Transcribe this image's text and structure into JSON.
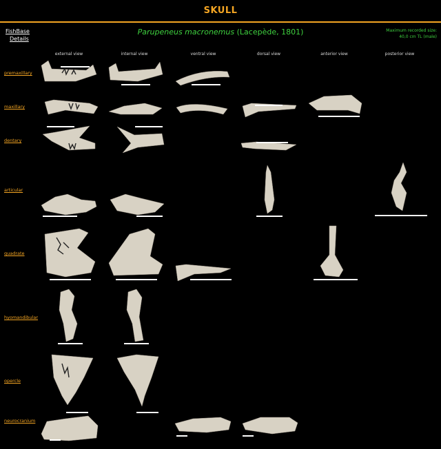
{
  "title": "SKULL",
  "fishbase": {
    "line1": "FishBase",
    "line2": "Details"
  },
  "species": {
    "name": "Parupeneus macronemus",
    "author": " (Lacepède, 1801)"
  },
  "max_size": {
    "line1": "Maximum recorded size:",
    "line2": "40,0 cm TL (male)"
  },
  "columns": [
    "external view",
    "internal view",
    "ventral view",
    "dorsal view",
    "anterior view",
    "posterior view"
  ],
  "rows": [
    "premaxillary",
    "maxillary",
    "dentary",
    "articular",
    "quadrate",
    "hyomandibular",
    "opercle",
    "neurocranium"
  ],
  "colors": {
    "accent": "#f5a623",
    "species": "#3fd13f",
    "bone": "#d8d2c4"
  }
}
